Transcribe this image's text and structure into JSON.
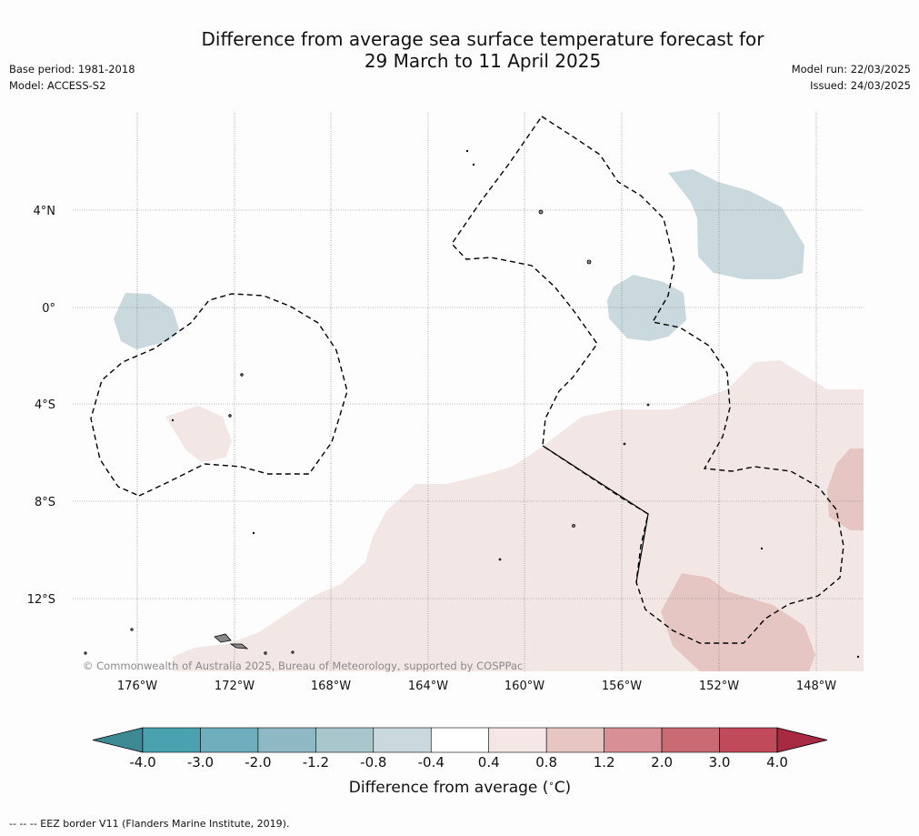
{
  "title": {
    "line1": "Difference from average sea surface temperature forecast for",
    "line2": "29 March to 11 April 2025"
  },
  "meta_left": {
    "base_period": "Base period: 1981-2018",
    "model": "Model: ACCESS-S2"
  },
  "meta_right": {
    "model_run": "Model run: 22/03/2025",
    "issued": "Issued: 24/03/2025"
  },
  "map": {
    "lat_labels": [
      "4°N",
      "0°",
      "4°S",
      "8°S",
      "12°S"
    ],
    "lon_labels": [
      "176°W",
      "172°W",
      "168°W",
      "164°W",
      "160°W",
      "156°W",
      "152°W",
      "148°W"
    ],
    "copyright": "© Commonwealth of Australia 2025, Bureau of Meteorology, supported by COSPPac",
    "colors": {
      "anomaly_-0.8_-0.4": "#c9d9de",
      "anomaly_0.4_0.8": "#f3e7e6",
      "anomaly_0.8_1.2": "#e6c6c2",
      "eez_border": "#000000",
      "land": "#888888"
    }
  },
  "colorbar": {
    "ticks": [
      "-4.0",
      "-3.0",
      "-2.0",
      "-1.2",
      "-0.8",
      "-0.4",
      "0.4",
      "0.8",
      "1.2",
      "2.0",
      "3.0",
      "4.0"
    ],
    "colors": [
      "#3d8a94",
      "#4aa2b1",
      "#6eaebd",
      "#8eb8c4",
      "#aac6cd",
      "#cad9de",
      "#ffffff",
      "#f4e7e6",
      "#e7c6c2",
      "#d88f95",
      "#ca6a73",
      "#c04a59",
      "#a82a42"
    ],
    "label_prefix": "Difference from average (",
    "label_unit": "C)",
    "label_degree": "∘"
  },
  "footnote": "--  --  -- EEZ border V11 (Flanders Marine Institute, 2019)."
}
